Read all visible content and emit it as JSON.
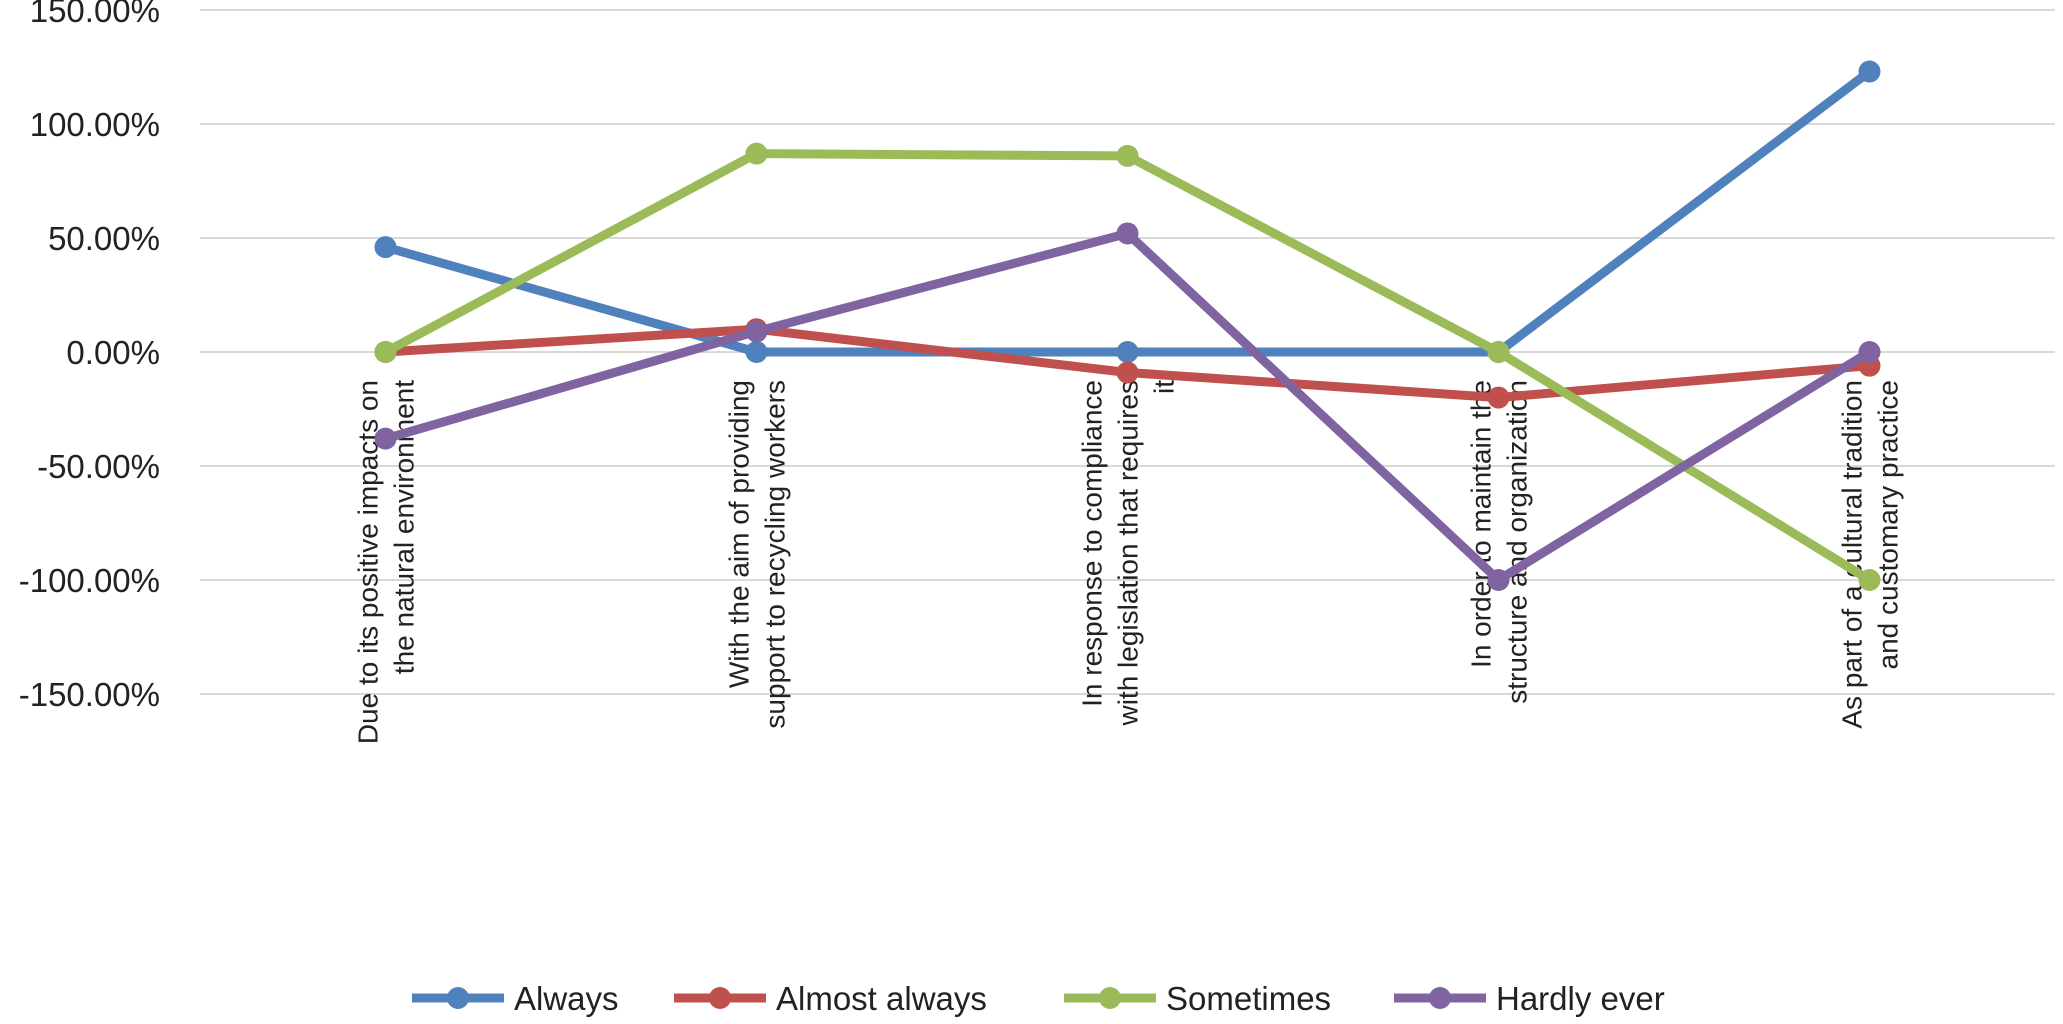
{
  "chart_data": {
    "type": "line",
    "title": "",
    "xlabel": "",
    "ylabel": "",
    "ylim": [
      -150,
      150
    ],
    "ytick_values": [
      150,
      100,
      50,
      0,
      -50,
      -100,
      -150
    ],
    "ytick_labels": [
      "150.00%",
      "100.00%",
      "50.00%",
      "0.00%",
      "-50.00%",
      "-100.00%",
      "-150.00%"
    ],
    "grid": true,
    "legend_position": "bottom",
    "categories": [
      [
        "Due to its positive impacts on",
        "the natural environment"
      ],
      [
        "With the aim of providing",
        "support to recycling workers"
      ],
      [
        "In response to compliance",
        "with legislation that requires",
        "it"
      ],
      [
        "In order to maintain the",
        "structure and organization"
      ],
      [
        "As part of a cultural tradition",
        "and customary practice"
      ]
    ],
    "series": [
      {
        "name": "Always",
        "color": "#4f81bd",
        "values": [
          46,
          0,
          0,
          0,
          123
        ]
      },
      {
        "name": "Almost always",
        "color": "#c0504d",
        "values": [
          0,
          10,
          -9,
          -20,
          -6
        ]
      },
      {
        "name": "Sometimes",
        "color": "#9bbb59",
        "values": [
          0,
          87,
          86,
          0,
          -100
        ]
      },
      {
        "name": "Hardly ever",
        "color": "#8064a2",
        "values": [
          -38,
          9,
          52,
          -100,
          0
        ]
      }
    ]
  }
}
